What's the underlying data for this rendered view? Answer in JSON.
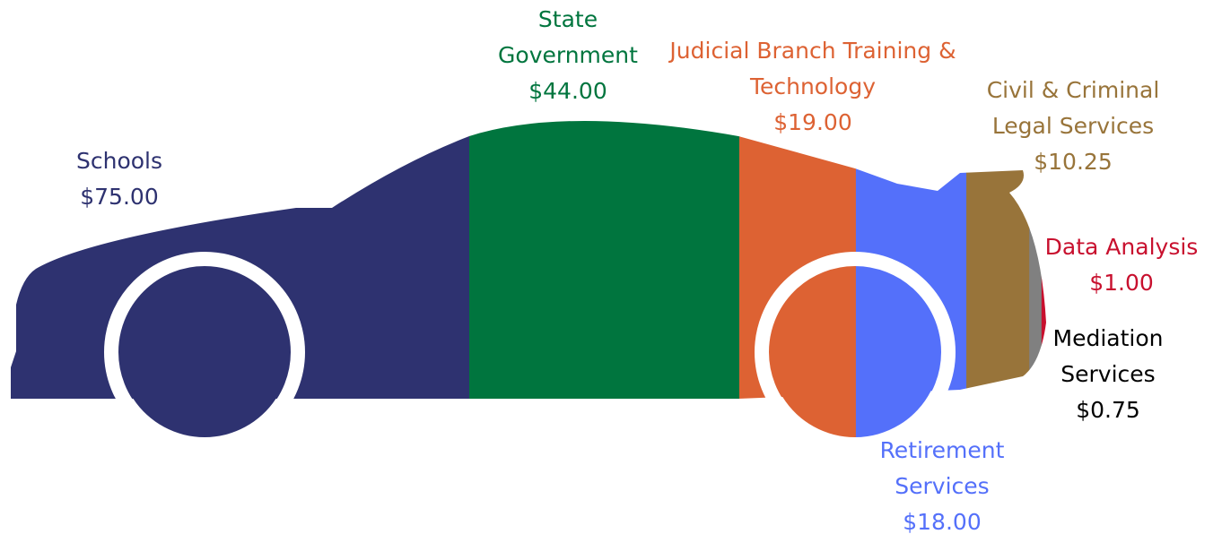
{
  "chart_data": {
    "type": "bar",
    "categories": [
      "Schools",
      "State Government",
      "Judicial Branch Training & Technology",
      "Retirement Services",
      "Civil & Criminal Legal Services",
      null,
      "Data Analysis",
      "Mediation Services"
    ],
    "values": [
      75,
      44,
      19,
      18,
      10.25,
      2,
      1,
      0.75
    ],
    "value_labels": [
      "$75.00",
      "$44.00",
      "$19.00",
      "$18.00",
      "$10.25",
      null,
      "$1.00",
      "$0.75"
    ],
    "colors": [
      "#2e3270",
      "#00753e",
      "#dd6233",
      "#5470fa",
      "#98743a",
      "#808080",
      "#c8102e",
      "#000000"
    ]
  }
}
